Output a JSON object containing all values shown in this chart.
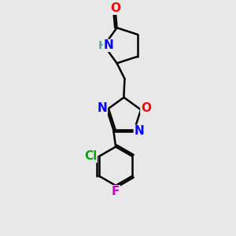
{
  "background_color": "#e8e8e8",
  "bond_color": "#000000",
  "line_width": 1.8,
  "atom_colors": {
    "O": "#ff0000",
    "N": "#0000ff",
    "H": "#5f9ea0",
    "Cl": "#00aa00",
    "F": "#cc00cc"
  },
  "font_size_atoms": 11,
  "font_size_small": 10
}
